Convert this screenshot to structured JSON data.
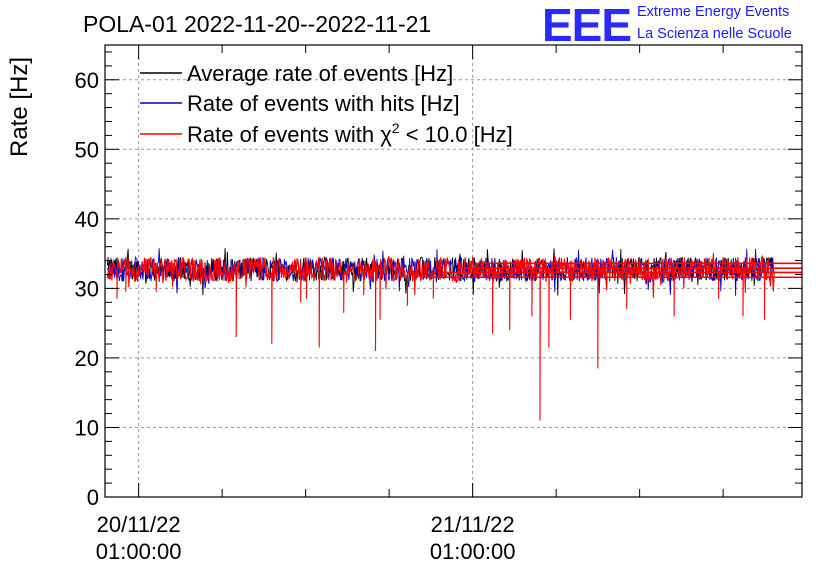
{
  "chart_data": {
    "type": "line",
    "title": "POLA-01 2022-11-20--2022-11-21",
    "ylabel": "Rate [Hz]",
    "xlabel": "",
    "ylim": [
      0,
      65
    ],
    "yticks": [
      0,
      10,
      20,
      30,
      40,
      50,
      60
    ],
    "x_axis": {
      "type": "time",
      "tick_labels": [
        {
          "t": "2022-11-20 01:00:00",
          "lines": [
            "20/11/22",
            "01:00:00"
          ]
        },
        {
          "t": "2022-11-21 01:00:00",
          "lines": [
            "21/11/22",
            "01:00:00"
          ]
        }
      ],
      "range": [
        "2022-11-19 22:35:00",
        "2022-11-22 00:40:00"
      ],
      "data_start": "2022-11-19 22:45:00",
      "data_end": "2022-11-21 22:40:00"
    },
    "grid": true,
    "legend": {
      "position": "top-left",
      "entries": [
        {
          "label": "Average rate of events [Hz]",
          "color": "#000000"
        },
        {
          "label": "Rate of events with hits [Hz]",
          "color": "#0000cc"
        },
        {
          "label_prefix": "Rate of events with ",
          "label_symbol": "χ",
          "label_sup": "2",
          "label_suffix": " < 10.0 [Hz]",
          "color": "#ff0000"
        }
      ]
    },
    "series": [
      {
        "name": "Average rate of events [Hz]",
        "color": "#000000",
        "baseline": 32.5
      },
      {
        "name": "Rate of events with hits [Hz]",
        "color": "#0000cc",
        "baseline": 32.5
      },
      {
        "name": "Rate of events with χ2 < 10.0 [Hz]",
        "color": "#ff0000",
        "baseline": 32.5,
        "band": [
          31,
          34.5
        ],
        "dips": [
          {
            "t": "2022-11-19 23:25:00",
            "value": 28.5
          },
          {
            "t": "2022-11-20 00:05:00",
            "value": 29.5
          },
          {
            "t": "2022-11-20 02:15:00",
            "value": 29.5
          },
          {
            "t": "2022-11-20 08:00:00",
            "value": 23.0
          },
          {
            "t": "2022-11-20 10:35:00",
            "value": 22.0
          },
          {
            "t": "2022-11-20 12:40:00",
            "value": 28.0
          },
          {
            "t": "2022-11-20 13:05:00",
            "value": 28.5
          },
          {
            "t": "2022-11-20 14:00:00",
            "value": 21.5
          },
          {
            "t": "2022-11-20 15:45:00",
            "value": 26.5
          },
          {
            "t": "2022-11-20 17:10:00",
            "value": 29.0
          },
          {
            "t": "2022-11-20 18:00:00",
            "value": 21.0
          },
          {
            "t": "2022-11-20 18:20:00",
            "value": 25.5
          },
          {
            "t": "2022-11-20 20:20:00",
            "value": 27.5
          },
          {
            "t": "2022-11-20 22:10:00",
            "value": 28.5
          },
          {
            "t": "2022-11-21 02:25:00",
            "value": 23.5
          },
          {
            "t": "2022-11-21 03:40:00",
            "value": 24.0
          },
          {
            "t": "2022-11-21 05:15:00",
            "value": 26.0
          },
          {
            "t": "2022-11-21 05:50:00",
            "value": 11.0
          },
          {
            "t": "2022-11-21 06:30:00",
            "value": 21.5
          },
          {
            "t": "2022-11-21 08:00:00",
            "value": 25.5
          },
          {
            "t": "2022-11-21 10:00:00",
            "value": 18.5
          },
          {
            "t": "2022-11-21 12:05:00",
            "value": 27.0
          },
          {
            "t": "2022-11-21 15:30:00",
            "value": 26.0
          },
          {
            "t": "2022-11-21 18:40:00",
            "value": 28.5
          },
          {
            "t": "2022-11-21 20:25:00",
            "value": 26.0
          },
          {
            "t": "2022-11-21 22:00:00",
            "value": 25.5
          }
        ],
        "tail_levels": [
          31.6,
          32.3,
          32.9,
          33.6
        ]
      }
    ]
  },
  "logo": {
    "mark": "EEE",
    "line1": "Extreme Energy Events",
    "line2": "La Scienza nelle Scuole"
  }
}
